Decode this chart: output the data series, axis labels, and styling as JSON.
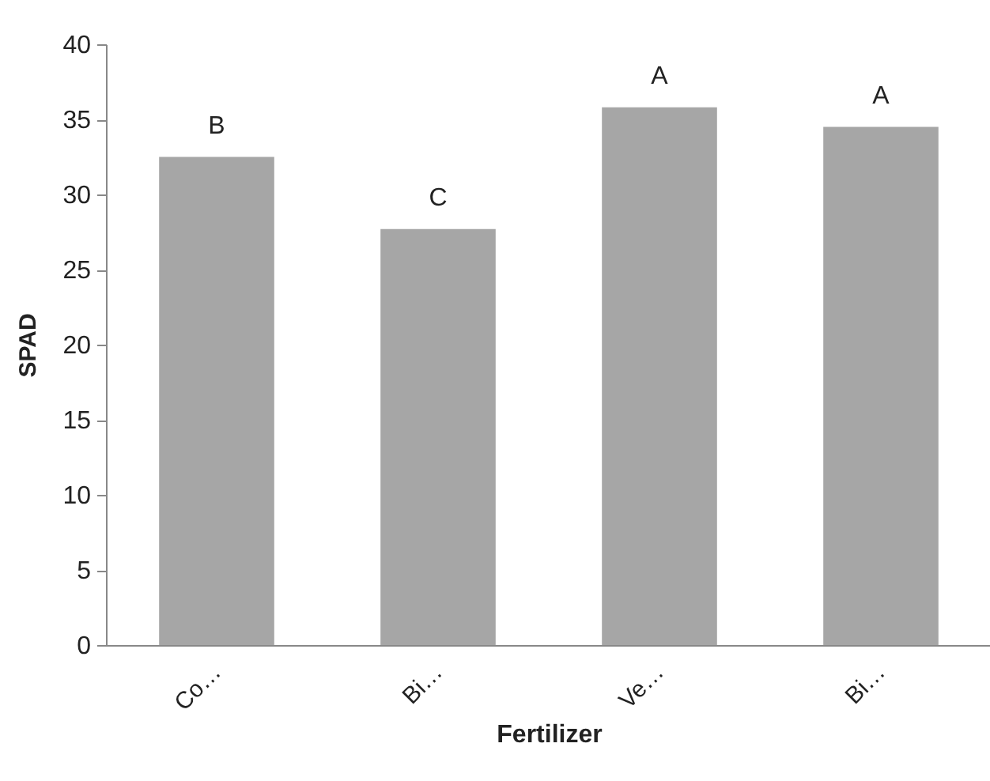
{
  "chart_data": {
    "type": "bar",
    "xlabel": "Fertilizer",
    "ylabel": "SPAD",
    "categories": [
      "Co…",
      "Bi…",
      "Ve…",
      "Bi…"
    ],
    "values": [
      32.5,
      27.7,
      35.8,
      34.5
    ],
    "color": "#a6a6a6",
    "ylim": [
      0,
      40
    ],
    "yticks": [
      0,
      5,
      10,
      15,
      20,
      25,
      30,
      35,
      40
    ],
    "grid": false,
    "annotations": [
      "B",
      "C",
      "A",
      "A"
    ]
  }
}
